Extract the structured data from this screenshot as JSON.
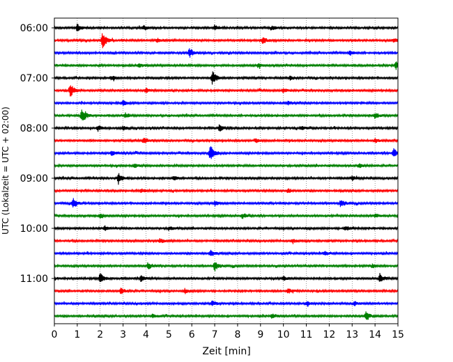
{
  "chart_data": {
    "type": "line",
    "title": "",
    "xlabel": "Zeit  [min]",
    "ylabel": "UTC (Lokalzeit = UTC + 02:00)",
    "xlim": [
      0,
      15
    ],
    "x_ticks": [
      0,
      1,
      2,
      3,
      4,
      5,
      6,
      7,
      8,
      9,
      10,
      11,
      12,
      13,
      14,
      15
    ],
    "x_tick_labels": [
      "0",
      "1",
      "2",
      "3",
      "4",
      "5",
      "6",
      "7",
      "8",
      "9",
      "10",
      "11",
      "12",
      "13",
      "14",
      "15"
    ],
    "y_tick_labels": [
      "06:00",
      "07:00",
      "08:00",
      "09:00",
      "10:00",
      "11:00"
    ],
    "grid": "vertical-dotted",
    "colors": [
      "#000000",
      "#ff0000",
      "#0000ff",
      "#008000"
    ],
    "series": [
      {
        "start": "06:00",
        "color": "#000000",
        "events": [
          [
            1.0,
            0.35
          ],
          [
            3.9,
            0.2
          ],
          [
            7.0,
            0.25
          ],
          [
            9.5,
            0.2
          ]
        ]
      },
      {
        "start": "06:15",
        "color": "#ff0000",
        "events": [
          [
            2.1,
            0.75
          ],
          [
            4.5,
            0.2
          ],
          [
            9.1,
            0.3
          ],
          [
            14.8,
            0.2
          ]
        ]
      },
      {
        "start": "06:30",
        "color": "#0000ff",
        "events": [
          [
            5.9,
            0.45
          ],
          [
            12.9,
            0.2
          ]
        ]
      },
      {
        "start": "06:45",
        "color": "#008000",
        "events": [
          [
            3.7,
            0.2
          ],
          [
            8.9,
            0.2
          ],
          [
            14.9,
            0.4
          ]
        ]
      },
      {
        "start": "07:00",
        "color": "#000000",
        "events": [
          [
            6.9,
            0.65
          ],
          [
            10.3,
            0.2
          ],
          [
            2.5,
            0.2
          ]
        ]
      },
      {
        "start": "07:15",
        "color": "#ff0000",
        "events": [
          [
            0.7,
            0.6
          ],
          [
            4.0,
            0.25
          ],
          [
            10.0,
            0.2
          ]
        ]
      },
      {
        "start": "07:30",
        "color": "#0000ff",
        "events": [
          [
            3.0,
            0.2
          ],
          [
            10.2,
            0.2
          ]
        ]
      },
      {
        "start": "07:45",
        "color": "#008000",
        "events": [
          [
            1.2,
            0.7
          ],
          [
            3.1,
            0.2
          ],
          [
            14.0,
            0.25
          ]
        ]
      },
      {
        "start": "08:00",
        "color": "#000000",
        "events": [
          [
            1.9,
            0.25
          ],
          [
            3.0,
            0.2
          ],
          [
            7.2,
            0.3
          ],
          [
            10.8,
            0.2
          ]
        ]
      },
      {
        "start": "08:15",
        "color": "#ff0000",
        "events": [
          [
            3.9,
            0.35
          ],
          [
            8.8,
            0.2
          ],
          [
            14.0,
            0.2
          ]
        ]
      },
      {
        "start": "08:30",
        "color": "#0000ff",
        "events": [
          [
            6.8,
            0.8
          ],
          [
            2.5,
            0.25
          ],
          [
            14.8,
            0.45
          ]
        ]
      },
      {
        "start": "08:45",
        "color": "#008000",
        "events": [
          [
            3.5,
            0.2
          ],
          [
            13.3,
            0.2
          ]
        ]
      },
      {
        "start": "09:00",
        "color": "#000000",
        "events": [
          [
            2.8,
            0.55
          ],
          [
            5.2,
            0.2
          ],
          [
            13.0,
            0.2
          ]
        ]
      },
      {
        "start": "09:15",
        "color": "#ff0000",
        "events": [
          [
            3.8,
            0.2
          ],
          [
            10.2,
            0.2
          ]
        ]
      },
      {
        "start": "09:30",
        "color": "#0000ff",
        "events": [
          [
            0.8,
            0.5
          ],
          [
            7.0,
            0.2
          ],
          [
            12.5,
            0.35
          ]
        ]
      },
      {
        "start": "09:45",
        "color": "#008000",
        "events": [
          [
            2.0,
            0.2
          ],
          [
            8.2,
            0.25
          ],
          [
            14.0,
            0.2
          ]
        ]
      },
      {
        "start": "10:00",
        "color": "#000000",
        "events": [
          [
            2.2,
            0.2
          ],
          [
            5.0,
            0.2
          ],
          [
            12.7,
            0.25
          ]
        ]
      },
      {
        "start": "10:15",
        "color": "#ff0000",
        "events": [
          [
            4.6,
            0.2
          ],
          [
            10.4,
            0.2
          ]
        ]
      },
      {
        "start": "10:30",
        "color": "#0000ff",
        "events": [
          [
            6.8,
            0.3
          ],
          [
            11.8,
            0.2
          ]
        ]
      },
      {
        "start": "10:45",
        "color": "#008000",
        "events": [
          [
            4.1,
            0.3
          ],
          [
            7.0,
            0.45
          ],
          [
            13.9,
            0.2
          ]
        ]
      },
      {
        "start": "11:00",
        "color": "#000000",
        "events": [
          [
            2.0,
            0.5
          ],
          [
            3.8,
            0.35
          ],
          [
            10.0,
            0.2
          ],
          [
            14.2,
            0.45
          ]
        ]
      },
      {
        "start": "11:15",
        "color": "#ff0000",
        "events": [
          [
            2.9,
            0.25
          ],
          [
            5.7,
            0.2
          ],
          [
            10.2,
            0.25
          ]
        ]
      },
      {
        "start": "11:30",
        "color": "#0000ff",
        "events": [
          [
            6.9,
            0.25
          ],
          [
            11.0,
            0.2
          ],
          [
            13.1,
            0.2
          ]
        ]
      },
      {
        "start": "11:45",
        "color": "#008000",
        "events": [
          [
            4.3,
            0.2
          ],
          [
            13.6,
            0.4
          ],
          [
            9.5,
            0.2
          ]
        ]
      }
    ]
  }
}
